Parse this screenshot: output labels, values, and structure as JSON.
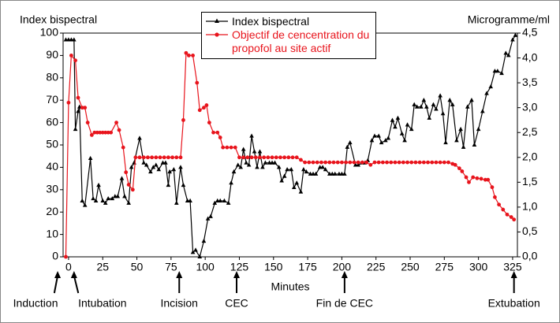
{
  "chart_data": {
    "type": "line",
    "y_label": "Index bispectral",
    "y2_label": "Microgramme/ml",
    "x_label": "Minutes",
    "xlim": [
      -4,
      328.5
    ],
    "xticks": [
      0,
      25,
      50,
      75,
      100,
      125,
      150,
      175,
      200,
      225,
      250,
      275,
      300,
      325
    ],
    "ylim": [
      0,
      100
    ],
    "yticks": [
      0,
      10,
      20,
      30,
      40,
      50,
      60,
      70,
      80,
      90,
      100
    ],
    "y2lim": [
      0,
      4.5
    ],
    "y2ticks": [
      {
        "value": 0,
        "label": "0,0"
      },
      {
        "value": 0.5,
        "label": "0,5"
      },
      {
        "value": 1,
        "label": "1,0"
      },
      {
        "value": 1.5,
        "label": "1,5"
      },
      {
        "value": 2,
        "label": "2,0"
      },
      {
        "value": 2.5,
        "label": "2,5"
      },
      {
        "value": 3,
        "label": "3,0"
      },
      {
        "value": 3.5,
        "label": "3,5"
      },
      {
        "value": 4,
        "label": "4,0"
      },
      {
        "value": 4.5,
        "label": "4,5"
      }
    ],
    "grid": false,
    "legend": "top-center",
    "series": [
      {
        "name": "Index bispectral",
        "color": "#000000",
        "marker": "triangle",
        "x": [
          -2,
          0,
          2,
          4,
          5,
          7,
          8,
          10,
          12,
          16,
          18,
          20,
          22,
          25,
          27,
          29,
          32,
          34,
          36,
          39,
          41,
          44,
          46,
          48,
          52,
          55,
          57,
          60,
          62,
          64,
          66,
          69,
          71,
          73,
          74,
          77,
          79,
          82,
          84,
          87,
          89,
          91,
          93,
          96,
          99,
          102,
          104,
          107,
          109,
          111,
          114,
          117,
          119,
          121,
          124,
          126,
          128,
          130,
          132,
          134,
          136,
          138,
          140,
          142,
          144,
          147,
          149,
          151,
          154,
          156,
          158,
          160,
          163,
          165,
          167,
          170,
          172,
          174,
          177,
          179,
          181,
          184,
          186,
          188,
          191,
          193,
          195,
          198,
          200,
          202,
          204,
          206,
          210,
          212,
          215,
          217,
          219,
          222,
          224,
          227,
          229,
          232,
          234,
          237,
          239,
          241,
          244,
          246,
          248,
          251,
          253,
          255,
          258,
          260,
          262,
          264,
          267,
          269,
          272,
          274,
          276,
          279,
          281,
          284,
          287,
          289,
          292,
          295,
          297,
          300,
          303,
          306,
          309,
          312,
          314,
          317,
          320,
          322,
          325,
          327
        ],
        "values": [
          97,
          97,
          97,
          97,
          57,
          65,
          67,
          25,
          23,
          44,
          26,
          25,
          32,
          25,
          24,
          26,
          26,
          27,
          27,
          35,
          27,
          24,
          40,
          42,
          53,
          42,
          41,
          38,
          40,
          41,
          39,
          42,
          42,
          32,
          38,
          39,
          24,
          40,
          32,
          25,
          25,
          2,
          3,
          0,
          7,
          17,
          18,
          24,
          25,
          25,
          25,
          24,
          33,
          38,
          41,
          40,
          48,
          42,
          41,
          54,
          47,
          40,
          47,
          40,
          42,
          42,
          42,
          42,
          40,
          34,
          36,
          39,
          39,
          31,
          33,
          29,
          39,
          38,
          37,
          37,
          37,
          40,
          40,
          39,
          37,
          37,
          37,
          37,
          37,
          37,
          49,
          51,
          41,
          41,
          42,
          42,
          43,
          52,
          54,
          54,
          51,
          52,
          53,
          61,
          58,
          62,
          55,
          52,
          59,
          57,
          68,
          67,
          67,
          70,
          67,
          62,
          68,
          66,
          72,
          64,
          51,
          70,
          68,
          52,
          57,
          49,
          67,
          70,
          50,
          57,
          65,
          73,
          76,
          83,
          83,
          82,
          91,
          90,
          97,
          99
        ]
      },
      {
        "name": "Objectif de cencentration du propofol au site actif",
        "color": "#e8141c",
        "marker": "circle",
        "axis": "y2",
        "x": [
          -2,
          0,
          2,
          5,
          7,
          10,
          12,
          14,
          17,
          19,
          21,
          23,
          25,
          27,
          29,
          31,
          35,
          37,
          40,
          42,
          44,
          47,
          49,
          52,
          55,
          58,
          61,
          64,
          67,
          70,
          73,
          76,
          79,
          82,
          84,
          86,
          88,
          91,
          94,
          96,
          99,
          101,
          103,
          106,
          109,
          111,
          113,
          116,
          119,
          122,
          125,
          128,
          131,
          134,
          137,
          140,
          143,
          146,
          149,
          152,
          155,
          158,
          161,
          164,
          167,
          170,
          173,
          176,
          179,
          182,
          185,
          188,
          191,
          194,
          197,
          200,
          203,
          206,
          209,
          212,
          215,
          218,
          221,
          224,
          227,
          230,
          233,
          236,
          239,
          242,
          245,
          248,
          251,
          254,
          257,
          260,
          263,
          266,
          269,
          272,
          275,
          278,
          281,
          283,
          286,
          288,
          291,
          293,
          296,
          299,
          302,
          305,
          307,
          310,
          312,
          315,
          318,
          321,
          324,
          326
        ],
        "values": [
          0,
          3.1,
          4.05,
          3.95,
          3.2,
          3.0,
          3.0,
          2.7,
          2.45,
          2.5,
          2.5,
          2.5,
          2.5,
          2.5,
          2.5,
          2.5,
          2.7,
          2.55,
          2.2,
          1.7,
          1.45,
          1.35,
          2.0,
          2.0,
          2.0,
          2.0,
          2.0,
          2.0,
          2.0,
          2.0,
          2.0,
          2.0,
          2.0,
          2.0,
          2.75,
          4.1,
          4.05,
          4.05,
          3.5,
          2.95,
          3.0,
          3.05,
          2.7,
          2.5,
          2.5,
          2.4,
          2.2,
          2.2,
          2.2,
          2.2,
          2.0,
          2.0,
          2.0,
          2.0,
          2.0,
          2.0,
          2.0,
          2.0,
          2.0,
          2.0,
          2.0,
          2.0,
          2.0,
          2.0,
          2.0,
          1.95,
          1.9,
          1.9,
          1.9,
          1.9,
          1.9,
          1.9,
          1.9,
          1.9,
          1.9,
          1.9,
          1.9,
          1.9,
          1.9,
          1.9,
          1.9,
          1.9,
          1.85,
          1.9,
          1.9,
          1.9,
          1.9,
          1.9,
          1.9,
          1.9,
          1.9,
          1.9,
          1.9,
          1.9,
          1.9,
          1.9,
          1.9,
          1.9,
          1.9,
          1.9,
          1.9,
          1.9,
          1.87,
          1.85,
          1.78,
          1.72,
          1.6,
          1.5,
          1.6,
          1.58,
          1.57,
          1.55,
          1.55,
          1.4,
          1.2,
          1.05,
          0.95,
          0.85,
          0.8,
          0.75
        ]
      }
    ],
    "annotations": [
      {
        "text": "Induction",
        "x": -8
      },
      {
        "text": "Intubation",
        "x": 4
      },
      {
        "text": "Incision",
        "x": 81
      },
      {
        "text": "CEC",
        "x": 123
      },
      {
        "text": "Fin de CEC",
        "x": 202
      },
      {
        "text": "Extubation",
        "x": 326
      }
    ]
  }
}
